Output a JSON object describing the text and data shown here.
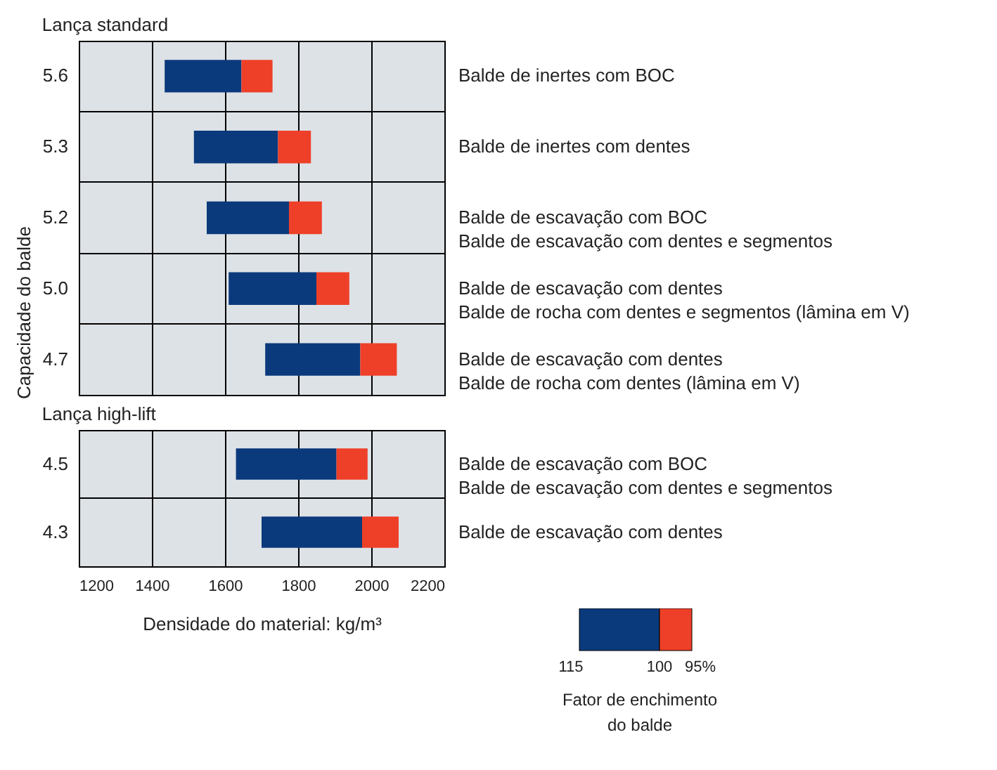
{
  "chart_data": [
    {
      "type": "bar",
      "orientation": "horizontal",
      "title": "Lança standard",
      "ylabel": "Capacidade do balde",
      "categories": [
        "5.6",
        "5.3",
        "5.2",
        "5.0",
        "4.7"
      ],
      "series": [
        {
          "color": "#0b3a7c",
          "base": [
            1435,
            1515,
            1550,
            1610,
            1710
          ],
          "values": [
            210,
            230,
            225,
            240,
            260
          ]
        },
        {
          "color": "#ee4028",
          "base": [
            1645,
            1745,
            1775,
            1850,
            1970
          ],
          "values": [
            85,
            90,
            90,
            90,
            100
          ]
        }
      ],
      "xlim": [
        1200,
        2200
      ],
      "xticks": [
        1200,
        1400,
        1600,
        1800,
        2000,
        2200
      ],
      "tick_labels": "y",
      "grid": true,
      "annotations": [
        "Balde de inertes com BOC",
        "Balde de inertes com dentes",
        "Balde de escavação com BOC\nBalde de escavação com dentes e segmentos",
        "Balde de escavação com dentes\nBalde de rocha com dentes e segmentos (lâmina em V)",
        "Balde de escavação com dentes\nBalde de rocha com dentes (lâmina em V)"
      ]
    },
    {
      "type": "bar",
      "orientation": "horizontal",
      "title": "Lança high-lift",
      "xlabel": "Densidade do material: kg/m³",
      "categories": [
        "4.5",
        "4.3"
      ],
      "series": [
        {
          "color": "#0b3a7c",
          "base": [
            1630,
            1700
          ],
          "values": [
            275,
            275
          ]
        },
        {
          "color": "#ee4028",
          "base": [
            1905,
            1975
          ],
          "values": [
            85,
            100
          ]
        }
      ],
      "xlim": [
        1200,
        2200
      ],
      "xticks": [
        1200,
        1400,
        1600,
        1800,
        2000,
        2200
      ],
      "grid": true,
      "legend_title": "Fator de enchimento do balde",
      "annotations": [
        "Balde de escavação com BOC\nBalde de escavação com dentes e segmentos",
        "Balde de escavação com dentes",
        "115",
        "100",
        "95%"
      ]
    }
  ]
}
